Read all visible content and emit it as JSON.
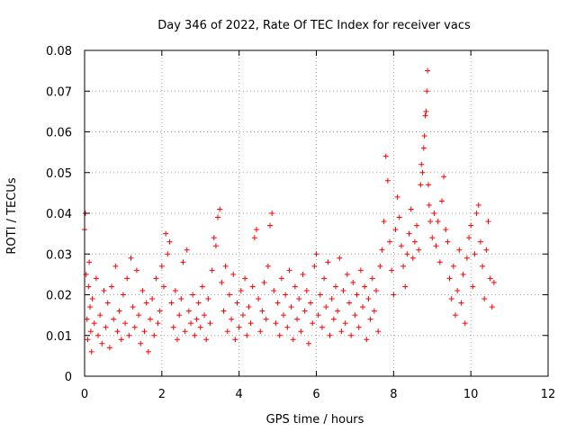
{
  "chart_data": {
    "type": "scatter",
    "title": "Day 346 of 2022, Rate Of TEC Index for receiver vacs",
    "xlabel": "GPS time / hours",
    "ylabel": "ROTI / TECUs",
    "xlim": [
      0,
      12
    ],
    "ylim": [
      0,
      0.08
    ],
    "xticks": [
      0,
      2,
      4,
      6,
      8,
      10,
      12
    ],
    "xtick_labels": [
      "0",
      "2",
      "4",
      "6",
      "8",
      "10",
      "12"
    ],
    "yticks": [
      0,
      0.01,
      0.02,
      0.03,
      0.04,
      0.05,
      0.06,
      0.07,
      0.08
    ],
    "ytick_labels": [
      "0",
      "0.01",
      "0.02",
      "0.03",
      "0.04",
      "0.05",
      "0.06",
      "0.07",
      "0.08"
    ],
    "grid": true,
    "marker": "+",
    "color": "#ff0000",
    "series": [
      {
        "name": "ROTI",
        "points": [
          [
            0.0,
            0.036
          ],
          [
            0.02,
            0.04
          ],
          [
            0.04,
            0.025
          ],
          [
            0.06,
            0.014
          ],
          [
            0.08,
            0.009
          ],
          [
            0.1,
            0.022
          ],
          [
            0.12,
            0.028
          ],
          [
            0.14,
            0.017
          ],
          [
            0.16,
            0.011
          ],
          [
            0.18,
            0.006
          ],
          [
            0.2,
            0.019
          ],
          [
            0.25,
            0.013
          ],
          [
            0.3,
            0.024
          ],
          [
            0.35,
            0.01
          ],
          [
            0.4,
            0.015
          ],
          [
            0.45,
            0.008
          ],
          [
            0.5,
            0.021
          ],
          [
            0.55,
            0.012
          ],
          [
            0.6,
            0.018
          ],
          [
            0.65,
            0.007
          ],
          [
            0.7,
            0.022
          ],
          [
            0.75,
            0.014
          ],
          [
            0.8,
            0.027
          ],
          [
            0.85,
            0.011
          ],
          [
            0.9,
            0.016
          ],
          [
            0.95,
            0.009
          ],
          [
            1.0,
            0.02
          ],
          [
            1.05,
            0.013
          ],
          [
            1.1,
            0.024
          ],
          [
            1.15,
            0.01
          ],
          [
            1.2,
            0.029
          ],
          [
            1.25,
            0.017
          ],
          [
            1.3,
            0.012
          ],
          [
            1.35,
            0.026
          ],
          [
            1.4,
            0.015
          ],
          [
            1.45,
            0.008
          ],
          [
            1.5,
            0.021
          ],
          [
            1.55,
            0.011
          ],
          [
            1.6,
            0.018
          ],
          [
            1.65,
            0.006
          ],
          [
            1.7,
            0.014
          ],
          [
            1.75,
            0.019
          ],
          [
            1.8,
            0.01
          ],
          [
            1.85,
            0.024
          ],
          [
            1.9,
            0.013
          ],
          [
            1.95,
            0.016
          ],
          [
            2.0,
            0.027
          ],
          [
            2.05,
            0.022
          ],
          [
            2.1,
            0.035
          ],
          [
            2.15,
            0.03
          ],
          [
            2.2,
            0.033
          ],
          [
            2.25,
            0.018
          ],
          [
            2.3,
            0.012
          ],
          [
            2.35,
            0.021
          ],
          [
            2.4,
            0.009
          ],
          [
            2.45,
            0.015
          ],
          [
            2.5,
            0.019
          ],
          [
            2.55,
            0.028
          ],
          [
            2.6,
            0.011
          ],
          [
            2.65,
            0.031
          ],
          [
            2.7,
            0.016
          ],
          [
            2.75,
            0.013
          ],
          [
            2.8,
            0.02
          ],
          [
            2.85,
            0.01
          ],
          [
            2.9,
            0.014
          ],
          [
            2.95,
            0.018
          ],
          [
            3.0,
            0.012
          ],
          [
            3.05,
            0.022
          ],
          [
            3.1,
            0.015
          ],
          [
            3.15,
            0.009
          ],
          [
            3.2,
            0.019
          ],
          [
            3.25,
            0.013
          ],
          [
            3.3,
            0.026
          ],
          [
            3.35,
            0.034
          ],
          [
            3.4,
            0.032
          ],
          [
            3.45,
            0.039
          ],
          [
            3.5,
            0.041
          ],
          [
            3.55,
            0.023
          ],
          [
            3.6,
            0.016
          ],
          [
            3.65,
            0.027
          ],
          [
            3.7,
            0.011
          ],
          [
            3.75,
            0.02
          ],
          [
            3.8,
            0.014
          ],
          [
            3.85,
            0.025
          ],
          [
            3.9,
            0.009
          ],
          [
            3.95,
            0.018
          ],
          [
            4.0,
            0.012
          ],
          [
            4.05,
            0.021
          ],
          [
            4.1,
            0.015
          ],
          [
            4.15,
            0.024
          ],
          [
            4.2,
            0.01
          ],
          [
            4.25,
            0.017
          ],
          [
            4.3,
            0.013
          ],
          [
            4.35,
            0.022
          ],
          [
            4.4,
            0.034
          ],
          [
            4.45,
            0.036
          ],
          [
            4.5,
            0.019
          ],
          [
            4.55,
            0.011
          ],
          [
            4.6,
            0.016
          ],
          [
            4.65,
            0.023
          ],
          [
            4.7,
            0.014
          ],
          [
            4.75,
            0.027
          ],
          [
            4.8,
            0.037
          ],
          [
            4.85,
            0.04
          ],
          [
            4.9,
            0.021
          ],
          [
            4.95,
            0.013
          ],
          [
            5.0,
            0.018
          ],
          [
            5.05,
            0.01
          ],
          [
            5.1,
            0.024
          ],
          [
            5.15,
            0.015
          ],
          [
            5.2,
            0.02
          ],
          [
            5.25,
            0.012
          ],
          [
            5.3,
            0.026
          ],
          [
            5.35,
            0.017
          ],
          [
            5.4,
            0.009
          ],
          [
            5.45,
            0.022
          ],
          [
            5.5,
            0.014
          ],
          [
            5.55,
            0.019
          ],
          [
            5.6,
            0.011
          ],
          [
            5.65,
            0.025
          ],
          [
            5.7,
            0.016
          ],
          [
            5.75,
            0.021
          ],
          [
            5.8,
            0.008
          ],
          [
            5.85,
            0.018
          ],
          [
            5.9,
            0.013
          ],
          [
            5.95,
            0.027
          ],
          [
            6.0,
            0.03
          ],
          [
            6.05,
            0.015
          ],
          [
            6.1,
            0.02
          ],
          [
            6.15,
            0.012
          ],
          [
            6.2,
            0.024
          ],
          [
            6.25,
            0.017
          ],
          [
            6.3,
            0.028
          ],
          [
            6.35,
            0.01
          ],
          [
            6.4,
            0.019
          ],
          [
            6.45,
            0.014
          ],
          [
            6.5,
            0.022
          ],
          [
            6.55,
            0.016
          ],
          [
            6.6,
            0.029
          ],
          [
            6.65,
            0.011
          ],
          [
            6.7,
            0.021
          ],
          [
            6.75,
            0.013
          ],
          [
            6.8,
            0.025
          ],
          [
            6.85,
            0.018
          ],
          [
            6.9,
            0.01
          ],
          [
            6.95,
            0.023
          ],
          [
            7.0,
            0.015
          ],
          [
            7.05,
            0.02
          ],
          [
            7.1,
            0.012
          ],
          [
            7.15,
            0.026
          ],
          [
            7.2,
            0.017
          ],
          [
            7.25,
            0.022
          ],
          [
            7.3,
            0.009
          ],
          [
            7.35,
            0.019
          ],
          [
            7.4,
            0.014
          ],
          [
            7.45,
            0.024
          ],
          [
            7.5,
            0.016
          ],
          [
            7.55,
            0.021
          ],
          [
            7.6,
            0.011
          ],
          [
            7.65,
            0.027
          ],
          [
            7.7,
            0.031
          ],
          [
            7.75,
            0.038
          ],
          [
            7.8,
            0.054
          ],
          [
            7.85,
            0.048
          ],
          [
            7.9,
            0.033
          ],
          [
            7.95,
            0.026
          ],
          [
            8.0,
            0.02
          ],
          [
            8.05,
            0.036
          ],
          [
            8.1,
            0.044
          ],
          [
            8.15,
            0.039
          ],
          [
            8.2,
            0.032
          ],
          [
            8.25,
            0.027
          ],
          [
            8.3,
            0.022
          ],
          [
            8.35,
            0.03
          ],
          [
            8.4,
            0.035
          ],
          [
            8.45,
            0.041
          ],
          [
            8.5,
            0.029
          ],
          [
            8.55,
            0.033
          ],
          [
            8.6,
            0.037
          ],
          [
            8.65,
            0.031
          ],
          [
            8.7,
            0.047
          ],
          [
            8.72,
            0.052
          ],
          [
            8.75,
            0.05
          ],
          [
            8.78,
            0.056
          ],
          [
            8.8,
            0.059
          ],
          [
            8.82,
            0.064
          ],
          [
            8.84,
            0.065
          ],
          [
            8.86,
            0.07
          ],
          [
            8.88,
            0.075
          ],
          [
            8.9,
            0.047
          ],
          [
            8.92,
            0.042
          ],
          [
            8.95,
            0.038
          ],
          [
            9.0,
            0.034
          ],
          [
            9.05,
            0.04
          ],
          [
            9.1,
            0.032
          ],
          [
            9.15,
            0.038
          ],
          [
            9.2,
            0.028
          ],
          [
            9.25,
            0.043
          ],
          [
            9.3,
            0.049
          ],
          [
            9.35,
            0.036
          ],
          [
            9.4,
            0.033
          ],
          [
            9.45,
            0.024
          ],
          [
            9.5,
            0.019
          ],
          [
            9.55,
            0.027
          ],
          [
            9.6,
            0.015
          ],
          [
            9.65,
            0.021
          ],
          [
            9.7,
            0.031
          ],
          [
            9.75,
            0.018
          ],
          [
            9.8,
            0.025
          ],
          [
            9.85,
            0.013
          ],
          [
            9.9,
            0.029
          ],
          [
            9.95,
            0.034
          ],
          [
            10.0,
            0.037
          ],
          [
            10.05,
            0.022
          ],
          [
            10.1,
            0.03
          ],
          [
            10.15,
            0.04
          ],
          [
            10.2,
            0.042
          ],
          [
            10.25,
            0.033
          ],
          [
            10.3,
            0.027
          ],
          [
            10.35,
            0.019
          ],
          [
            10.4,
            0.031
          ],
          [
            10.45,
            0.038
          ],
          [
            10.5,
            0.024
          ],
          [
            10.55,
            0.017
          ],
          [
            10.6,
            0.023
          ]
        ]
      }
    ]
  }
}
